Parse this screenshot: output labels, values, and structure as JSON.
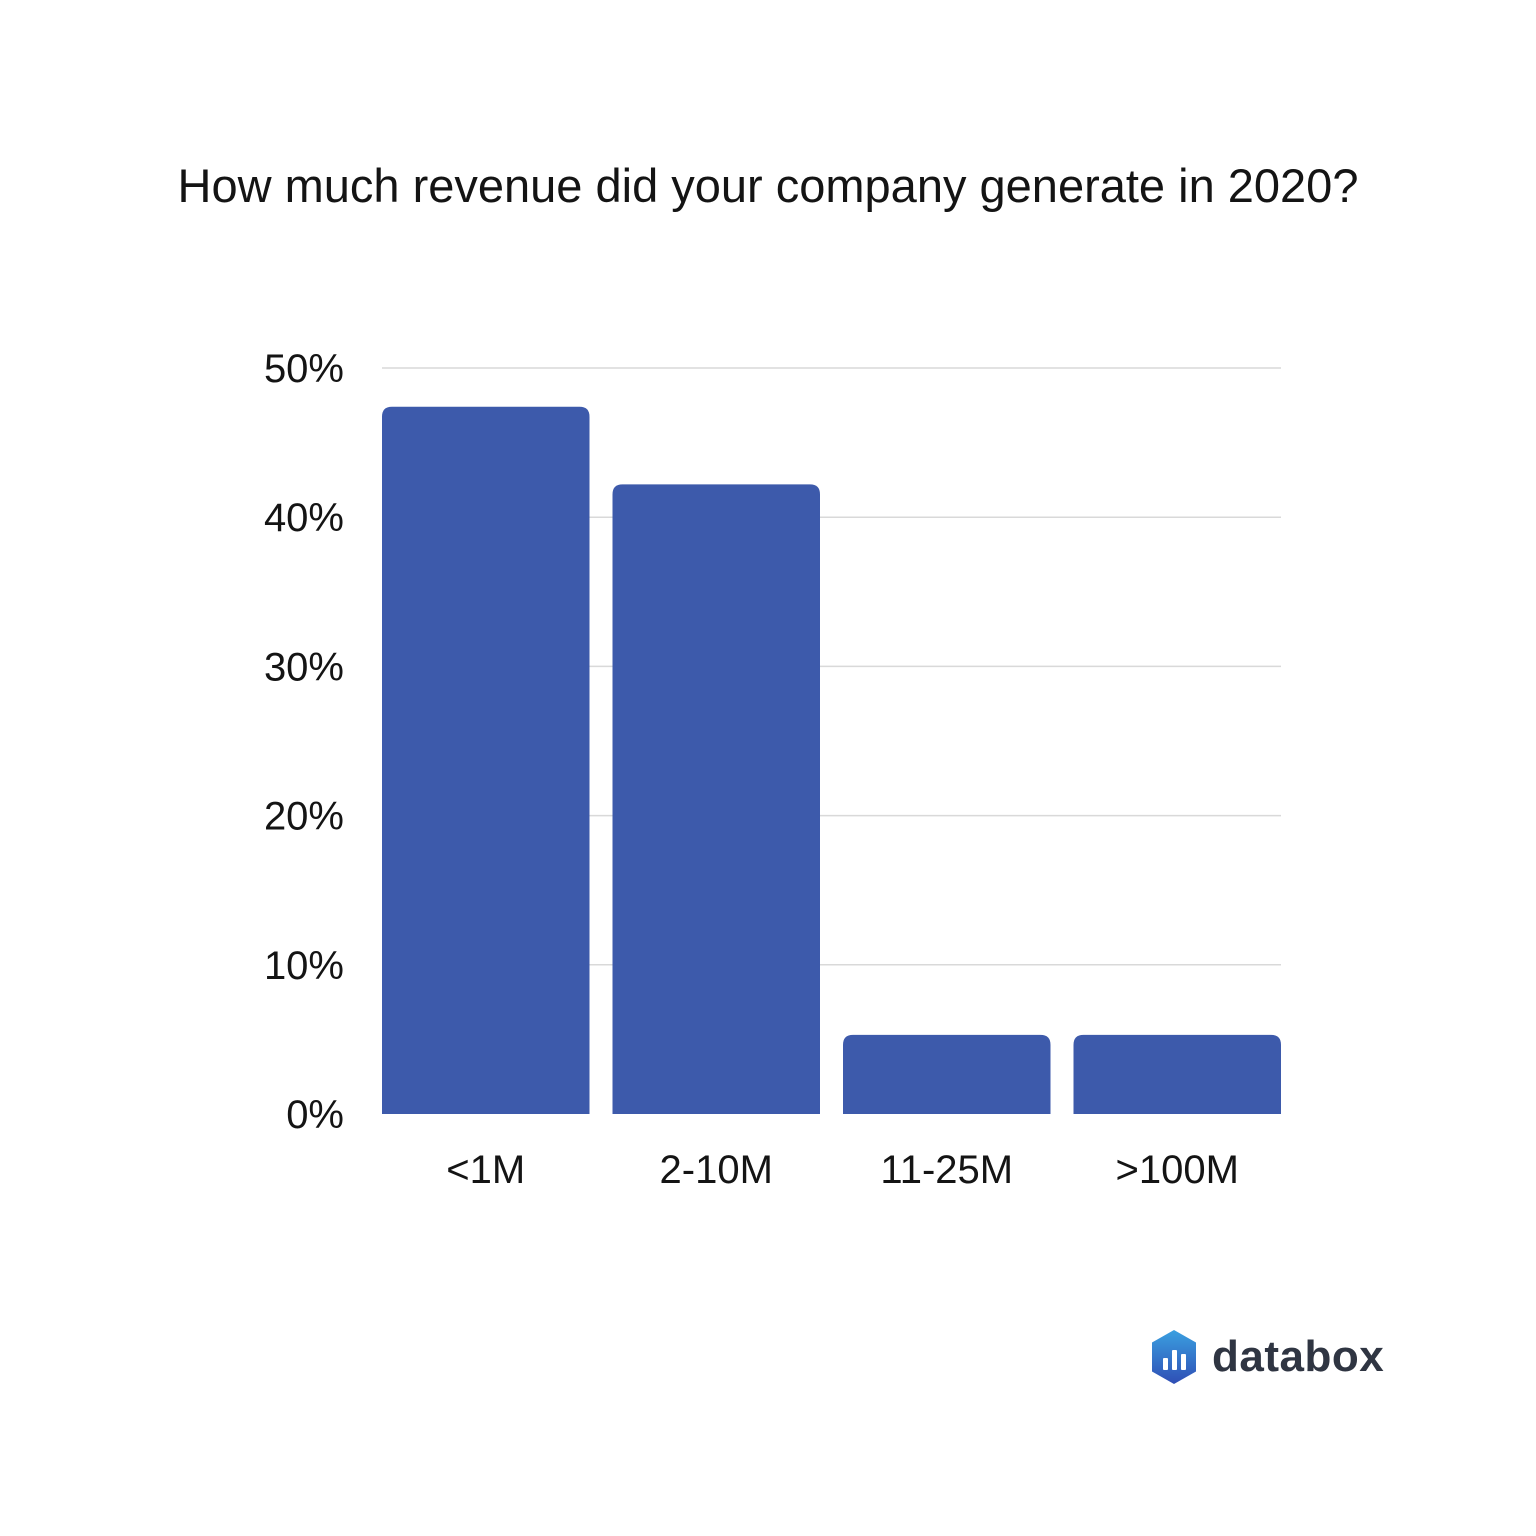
{
  "chart_data": {
    "type": "bar",
    "title": "How much revenue did your company generate in 2020?",
    "xlabel": "",
    "ylabel": "",
    "categories": [
      "<1M",
      "2-10M",
      "11-25M",
      ">100M"
    ],
    "values": [
      47.4,
      42.2,
      5.3,
      5.3
    ],
    "ylim": [
      0,
      50
    ],
    "yticks": [
      0,
      10,
      20,
      30,
      40,
      50
    ],
    "ytick_labels": [
      "0%",
      "10%",
      "20%",
      "30%",
      "40%",
      "50%"
    ],
    "grid": true,
    "legend": "none",
    "colors": {
      "bar": "#3d5aab",
      "grid": "#d9d9d9",
      "text": "#141414"
    }
  },
  "brand": {
    "name": "databox",
    "icon": "databox-logo-icon",
    "icon_color_top": "#3aa0e0",
    "icon_color_bottom": "#2f4eb5"
  }
}
